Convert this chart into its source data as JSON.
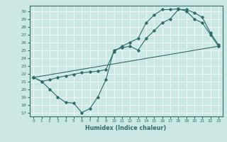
{
  "title": "",
  "xlabel": "Humidex (Indice chaleur)",
  "bg_color": "#cce8e4",
  "line_color": "#2e6b6b",
  "xlim": [
    -0.5,
    23.5
  ],
  "ylim": [
    16.5,
    30.7
  ],
  "yticks": [
    17,
    18,
    19,
    20,
    21,
    22,
    23,
    24,
    25,
    26,
    27,
    28,
    29,
    30
  ],
  "xticks": [
    0,
    1,
    2,
    3,
    4,
    5,
    6,
    7,
    8,
    9,
    10,
    11,
    12,
    13,
    14,
    15,
    16,
    17,
    18,
    19,
    20,
    21,
    22,
    23
  ],
  "line1_x": [
    0,
    1,
    2,
    3,
    4,
    5,
    6,
    7,
    8,
    9,
    10,
    11,
    12,
    13,
    14,
    15,
    16,
    17,
    18,
    19,
    20,
    21,
    22,
    23
  ],
  "line1_y": [
    21.5,
    21.0,
    20.0,
    19.0,
    18.3,
    18.2,
    17.0,
    17.5,
    19.0,
    21.2,
    25.0,
    25.3,
    25.5,
    25.0,
    26.5,
    27.5,
    28.5,
    29.0,
    30.2,
    30.2,
    29.8,
    29.2,
    27.2,
    25.7
  ],
  "line2_x": [
    0,
    1,
    2,
    3,
    4,
    5,
    6,
    7,
    8,
    9,
    10,
    11,
    12,
    13,
    14,
    15,
    16,
    17,
    18,
    19,
    20,
    21,
    22,
    23
  ],
  "line2_y": [
    21.5,
    21.0,
    21.2,
    21.5,
    21.7,
    21.9,
    22.1,
    22.2,
    22.3,
    22.5,
    24.8,
    25.5,
    26.0,
    26.5,
    28.5,
    29.5,
    30.2,
    30.2,
    30.3,
    30.0,
    29.0,
    28.5,
    27.0,
    25.5
  ],
  "line3_x": [
    0,
    23
  ],
  "line3_y": [
    21.5,
    25.5
  ]
}
